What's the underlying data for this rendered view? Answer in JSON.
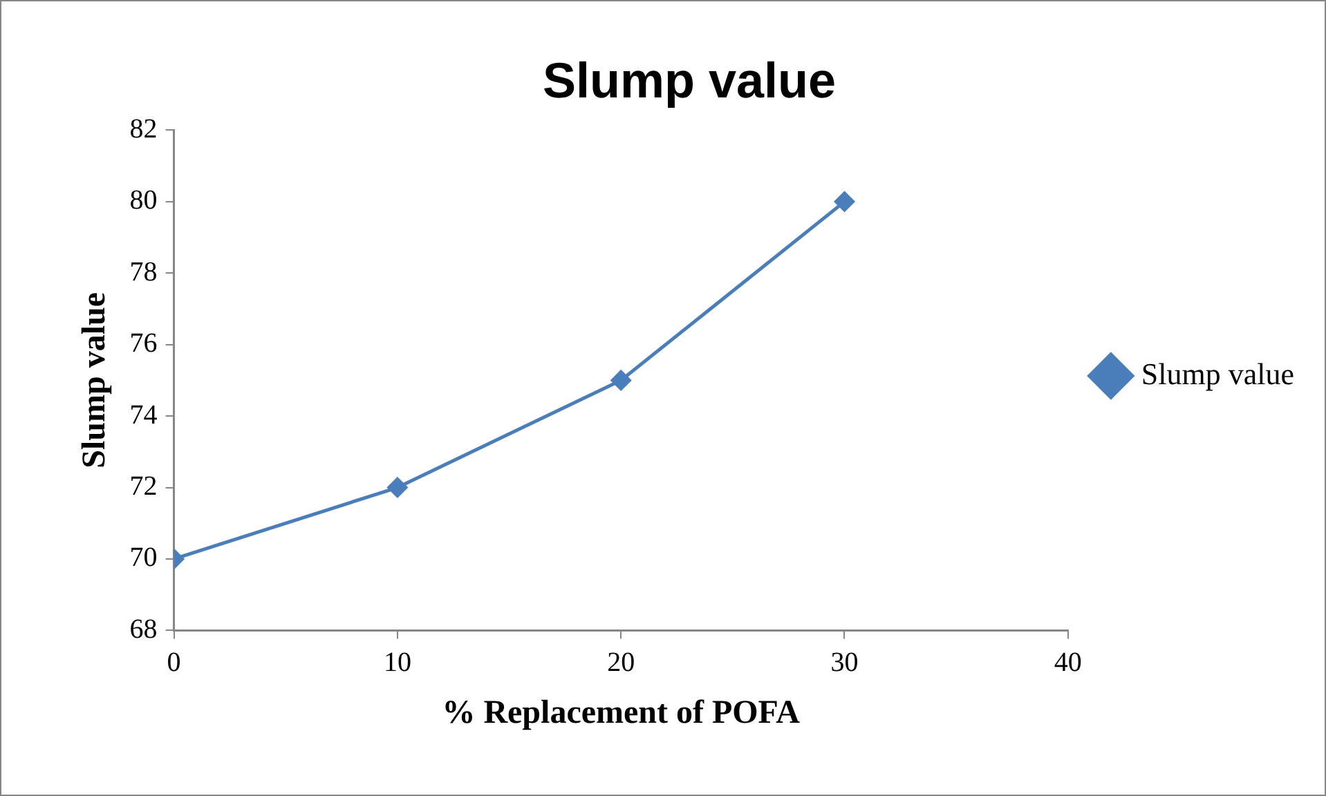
{
  "chart_data": {
    "type": "line",
    "title": "Slump value",
    "xlabel": "% Replacement of POFA",
    "ylabel": "Slump value",
    "x": [
      0,
      10,
      20,
      30
    ],
    "series": [
      {
        "name": "Slump value",
        "color": "#4a7ebb",
        "values": [
          70,
          72,
          75,
          80
        ]
      }
    ],
    "xlim": [
      0,
      40
    ],
    "xticks": [
      0,
      10,
      20,
      30,
      40
    ],
    "ylim": [
      68,
      82
    ],
    "yticks": [
      68,
      70,
      72,
      74,
      76,
      78,
      80,
      82
    ],
    "grid": false,
    "legend": "right",
    "marker": "diamond",
    "line_style": "solid"
  }
}
